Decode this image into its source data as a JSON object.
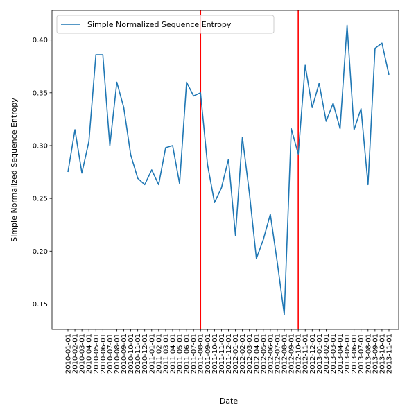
{
  "chart_data": {
    "type": "line",
    "title": "",
    "xlabel": "Date",
    "ylabel": "Simple Normalized Sequence Entropy",
    "ylim": [
      0.126,
      0.428
    ],
    "yticks": [
      0.15,
      0.2,
      0.25,
      0.3,
      0.35,
      0.4
    ],
    "ytick_labels": [
      "0.15",
      "0.20",
      "0.25",
      "0.30",
      "0.35",
      "0.40"
    ],
    "grid": false,
    "legend_position": "top-left",
    "x": [
      "2010-01-01",
      "2010-02-01",
      "2010-03-01",
      "2010-04-01",
      "2010-05-01",
      "2010-06-01",
      "2010-07-01",
      "2010-08-01",
      "2010-09-01",
      "2010-10-01",
      "2010-11-01",
      "2010-12-01",
      "2011-01-01",
      "2011-02-01",
      "2011-03-01",
      "2011-04-01",
      "2011-05-01",
      "2011-06-01",
      "2011-07-01",
      "2011-08-01",
      "2011-09-01",
      "2011-10-01",
      "2011-11-01",
      "2011-12-01",
      "2012-01-01",
      "2012-02-01",
      "2012-03-01",
      "2012-04-01",
      "2012-05-01",
      "2012-06-01",
      "2012-07-01",
      "2012-08-01",
      "2012-09-01",
      "2012-10-01",
      "2012-11-01",
      "2012-12-01",
      "2013-01-01",
      "2013-02-01",
      "2013-03-01",
      "2013-04-01",
      "2013-05-01",
      "2013-06-01",
      "2013-07-01",
      "2013-08-01",
      "2013-09-01",
      "2013-10-01",
      "2013-11-01"
    ],
    "series": [
      {
        "name": "Simple Normalized Sequence Entropy",
        "color": "#1f77b4",
        "values": [
          0.275,
          0.315,
          0.274,
          0.304,
          0.386,
          0.386,
          0.3,
          0.36,
          0.336,
          0.291,
          0.269,
          0.263,
          0.277,
          0.263,
          0.298,
          0.3,
          0.264,
          0.36,
          0.347,
          0.35,
          0.282,
          0.246,
          0.26,
          0.287,
          0.215,
          0.308,
          0.255,
          0.193,
          0.211,
          0.235,
          0.189,
          0.14,
          0.316,
          0.292,
          0.376,
          0.336,
          0.359,
          0.323,
          0.34,
          0.316,
          0.414,
          0.315,
          0.335,
          0.263,
          0.392,
          0.397,
          0.367
        ]
      }
    ],
    "vlines": [
      {
        "x": "2011-08-01",
        "color": "#ff0000"
      },
      {
        "x": "2012-10-01",
        "color": "#ff0000"
      }
    ]
  }
}
